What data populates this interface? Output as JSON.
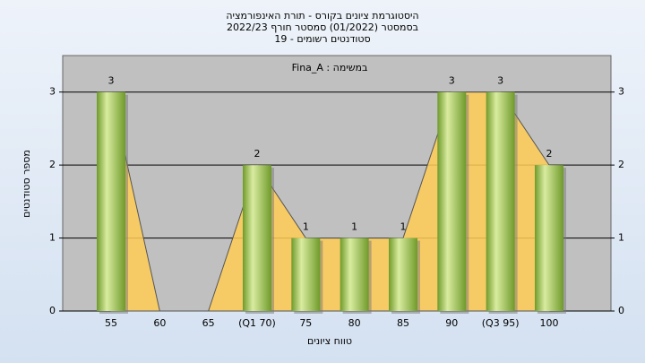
{
  "chart_data": {
    "type": "bar",
    "title": "היסטוגרמת ציונים בקורס - תורת האינפורמציה",
    "subtitle": "בסמסטר (01/2022) סמסטר חורף 2022/23",
    "subtitle2": "סטודנטים רשומים - 19",
    "annotation": "במשימה : Fina_A",
    "x_label": "טווח ציונים",
    "y_label": "מספר סטודנטים",
    "categories": [
      "55",
      "60",
      "65",
      "(Q1 70)",
      "75",
      "80",
      "85",
      "90",
      "(Q3 95)",
      "100"
    ],
    "values": [
      3,
      0,
      0,
      2,
      1,
      1,
      1,
      3,
      3,
      2
    ],
    "color": "#8fb83c",
    "ylim": [
      0,
      3.5
    ],
    "yticks": [
      0,
      1,
      2,
      3
    ],
    "grid": true
  }
}
